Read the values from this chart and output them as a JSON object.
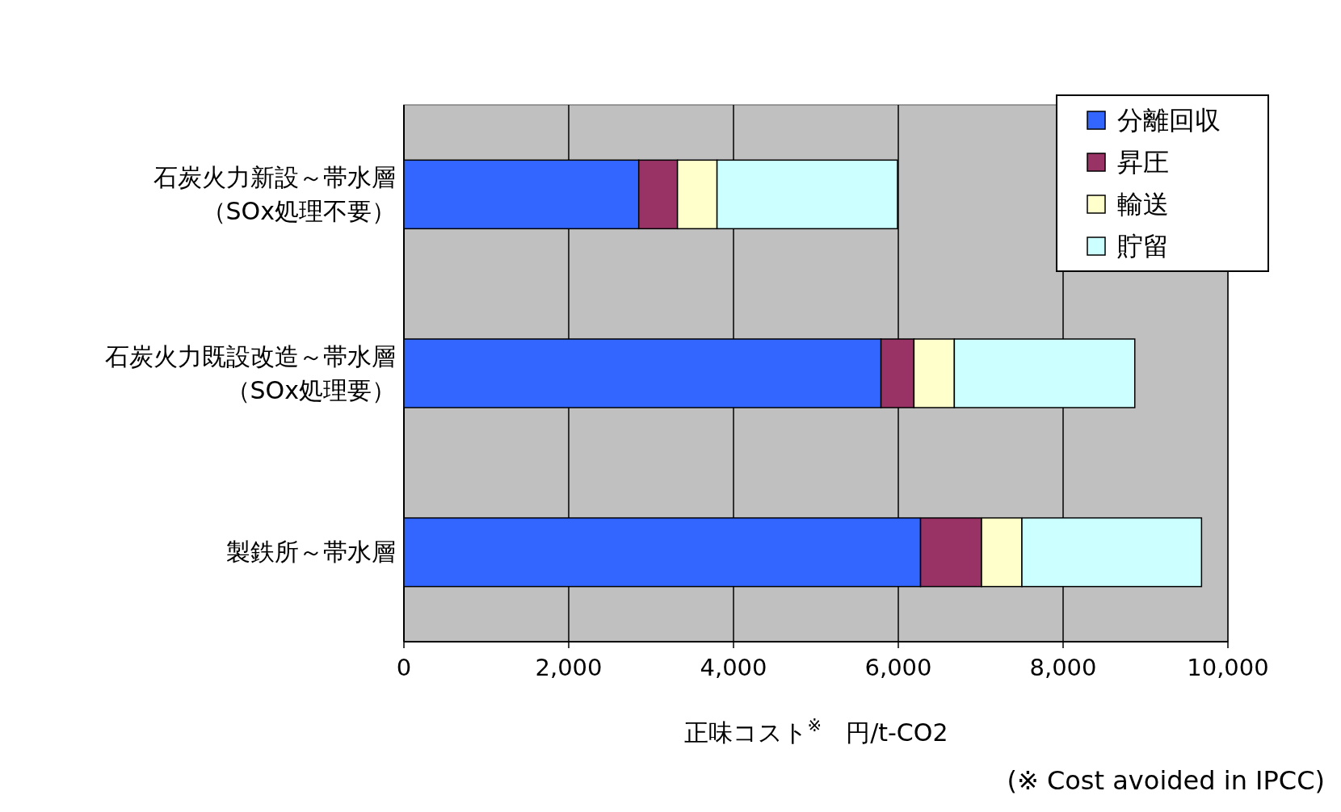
{
  "chart_data": {
    "type": "bar",
    "orientation": "horizontal",
    "stacked": true,
    "categories": [
      "石炭火力新設～帯水層（SOx処理不要）",
      "石炭火力既設改造～帯水層（SOx処理要）",
      "製鉄所～帯水層"
    ],
    "series": [
      {
        "name": "分離回収",
        "color": "#3366ff",
        "values": [
          2850,
          5790,
          6270
        ]
      },
      {
        "name": "昇圧",
        "color": "#993366",
        "values": [
          470,
          400,
          740
        ]
      },
      {
        "name": "輸送",
        "color": "#ffffcc",
        "values": [
          480,
          490,
          490
        ]
      },
      {
        "name": "貯留",
        "color": "#ccffff",
        "values": [
          2190,
          2190,
          2180
        ]
      }
    ],
    "xlim": [
      0,
      10000
    ],
    "xticks": [
      0,
      {
        "value": 2000,
        "label": "2,000"
      },
      {
        "value": 4000,
        "label": "4,000"
      },
      {
        "value": 6000,
        "label": "6,000"
      },
      {
        "value": 8000,
        "label": "8,000"
      },
      {
        "value": 10000,
        "label": "10,000"
      }
    ],
    "xlabel": "正味コスト$^{※}$　円/t-CO2",
    "annotations": [
      "(※ Cost avoided in IPCC)"
    ],
    "grid": "x",
    "legend": "top right"
  }
}
